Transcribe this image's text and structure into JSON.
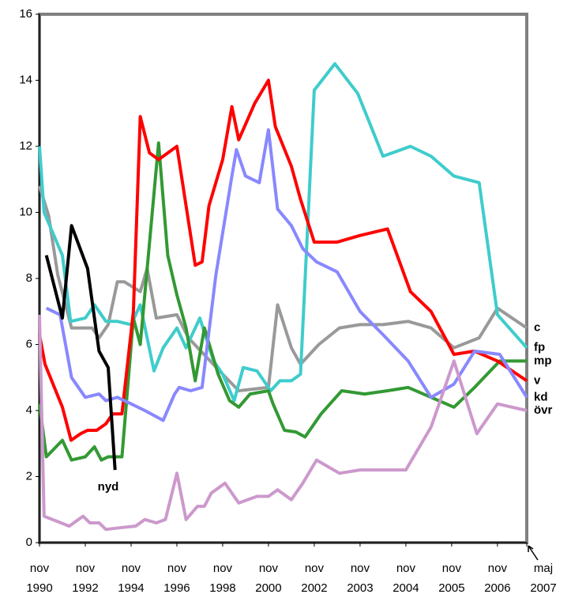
{
  "chart_data": {
    "type": "line",
    "xlim": [
      0,
      10.64
    ],
    "ylim": [
      0,
      16
    ],
    "yticks": [
      0,
      2,
      4,
      6,
      8,
      10,
      12,
      14,
      16
    ],
    "xticks": [
      {
        "value": 0,
        "label": "nov 1990"
      },
      {
        "value": 1,
        "label": "nov 1992"
      },
      {
        "value": 2,
        "label": "nov 1994"
      },
      {
        "value": 3,
        "label": "nov 1996"
      },
      {
        "value": 4,
        "label": "nov 1998"
      },
      {
        "value": 5,
        "label": "nov 2000"
      },
      {
        "value": 6,
        "label": "nov 2002"
      },
      {
        "value": 7,
        "label": "nov 2003"
      },
      {
        "value": 8,
        "label": "nov 2004"
      },
      {
        "value": 9,
        "label": "nov 2005"
      },
      {
        "value": 10,
        "label": "nov 2006"
      },
      {
        "value": 10.64,
        "label": "maj 2007"
      }
    ],
    "grid": false,
    "series": [
      {
        "name": "c",
        "color": "#999999",
        "x": [
          0,
          0.2,
          0.4,
          0.7,
          1.15,
          1.3,
          1.5,
          1.7,
          1.85,
          2.2,
          2.35,
          2.55,
          3.0,
          3.25,
          4.0,
          4.35,
          5.0,
          5.2,
          5.5,
          5.7,
          6.1,
          6.55,
          7.0,
          7.5,
          8.05,
          8.55,
          9.05,
          9.6,
          10.0,
          10.64
        ],
        "values": [
          10.8,
          9.9,
          8.1,
          6.5,
          6.5,
          6.2,
          6.6,
          7.9,
          7.9,
          7.6,
          8.3,
          6.8,
          6.9,
          6.2,
          5.1,
          4.6,
          4.7,
          7.2,
          5.9,
          5.4,
          6.0,
          6.5,
          6.6,
          6.6,
          6.7,
          6.5,
          5.9,
          6.2,
          7.1,
          6.5
        ]
      },
      {
        "name": "fp",
        "color": "#3fcccc",
        "x": [
          0,
          0.1,
          0.5,
          0.68,
          1.0,
          1.2,
          1.45,
          1.7,
          2.0,
          2.2,
          2.5,
          2.7,
          3.0,
          3.2,
          3.5,
          3.8,
          4.0,
          4.25,
          4.45,
          4.75,
          5.05,
          5.25,
          5.5,
          5.7,
          6.0,
          6.45,
          6.95,
          7.5,
          8.1,
          8.55,
          9.05,
          9.6,
          10.0,
          10.64
        ],
        "values": [
          12.0,
          10.0,
          8.7,
          6.7,
          6.8,
          7.2,
          6.7,
          6.7,
          6.6,
          7.2,
          5.2,
          5.9,
          6.5,
          5.9,
          6.8,
          5.5,
          5.1,
          4.3,
          5.3,
          5.2,
          4.6,
          4.9,
          4.9,
          5.1,
          13.7,
          14.5,
          13.6,
          11.7,
          12.0,
          11.7,
          11.1,
          10.9,
          6.9,
          5.9
        ]
      },
      {
        "name": "mp",
        "color": "#339933",
        "x": [
          0,
          0.15,
          0.5,
          0.7,
          1.0,
          1.2,
          1.35,
          1.5,
          1.65,
          1.8,
          2.05,
          2.2,
          2.6,
          2.8,
          3.0,
          3.2,
          3.4,
          3.6,
          3.9,
          4.15,
          4.35,
          4.6,
          5.0,
          5.1,
          5.35,
          5.6,
          5.8,
          6.15,
          6.6,
          7.1,
          7.6,
          8.05,
          8.55,
          9.05,
          9.5,
          10.05,
          10.64
        ],
        "values": [
          4.2,
          2.6,
          3.1,
          2.5,
          2.6,
          2.9,
          2.5,
          2.6,
          2.6,
          2.6,
          6.8,
          6.0,
          12.1,
          8.7,
          7.5,
          6.5,
          4.9,
          6.5,
          5.1,
          4.3,
          4.1,
          4.5,
          4.6,
          4.2,
          3.4,
          3.35,
          3.2,
          3.9,
          4.6,
          4.5,
          4.6,
          4.7,
          4.4,
          4.1,
          4.7,
          5.5,
          5.5
        ]
      },
      {
        "name": "v",
        "color": "#ff0000",
        "x": [
          0,
          0.12,
          0.5,
          0.69,
          0.9,
          1.05,
          1.25,
          1.45,
          1.6,
          1.8,
          2.05,
          2.2,
          2.4,
          2.6,
          3.0,
          3.4,
          3.55,
          3.7,
          4.0,
          4.2,
          4.35,
          4.7,
          5.0,
          5.15,
          5.5,
          5.7,
          6.0,
          6.5,
          7.0,
          7.6,
          8.1,
          8.55,
          9.05,
          9.5,
          10.0,
          10.64
        ],
        "values": [
          6.3,
          5.4,
          4.1,
          3.1,
          3.3,
          3.4,
          3.4,
          3.6,
          3.9,
          3.9,
          7.0,
          12.9,
          11.8,
          11.6,
          12.0,
          8.4,
          8.5,
          10.2,
          11.6,
          13.2,
          12.2,
          13.3,
          14.0,
          12.6,
          11.4,
          10.4,
          9.1,
          9.1,
          9.3,
          9.5,
          7.6,
          7.0,
          5.7,
          5.8,
          5.5,
          4.9
        ]
      },
      {
        "name": "kd",
        "color": "#8888ff",
        "x": [
          0.15,
          0.45,
          0.7,
          1.0,
          1.3,
          1.45,
          1.7,
          2.0,
          2.3,
          2.7,
          2.95,
          3.05,
          3.3,
          3.55,
          3.85,
          4.2,
          4.3,
          4.5,
          4.8,
          5.0,
          5.2,
          5.5,
          5.75,
          6.05,
          6.5,
          7.0,
          7.5,
          8.05,
          8.55,
          9.05,
          9.5,
          10.05,
          10.64
        ],
        "values": [
          7.1,
          6.9,
          5.0,
          4.4,
          4.5,
          4.3,
          4.4,
          4.2,
          4.0,
          3.7,
          4.5,
          4.7,
          4.6,
          4.7,
          8.1,
          11.1,
          11.9,
          11.1,
          10.9,
          12.5,
          10.1,
          9.6,
          8.9,
          8.5,
          8.2,
          7.0,
          6.3,
          5.5,
          4.4,
          4.8,
          5.8,
          5.7,
          4.4
        ]
      },
      {
        "name": "övr",
        "color": "#cc99cc",
        "x": [
          0,
          0.1,
          0.65,
          0.95,
          1.1,
          1.3,
          1.45,
          1.75,
          2.1,
          2.3,
          2.55,
          2.75,
          3.0,
          3.2,
          3.45,
          3.6,
          3.75,
          4.05,
          4.35,
          4.75,
          5.0,
          5.2,
          5.5,
          5.75,
          6.05,
          6.55,
          7.0,
          7.5,
          8.0,
          8.55,
          9.05,
          9.55,
          10.0,
          10.64
        ],
        "values": [
          6.9,
          0.8,
          0.5,
          0.8,
          0.6,
          0.6,
          0.4,
          0.45,
          0.5,
          0.7,
          0.6,
          0.7,
          2.1,
          0.7,
          1.1,
          1.1,
          1.5,
          1.8,
          1.2,
          1.4,
          1.4,
          1.6,
          1.3,
          1.8,
          2.5,
          2.1,
          2.2,
          2.2,
          2.2,
          3.5,
          5.5,
          3.3,
          4.2,
          4.0
        ]
      },
      {
        "name": "nyd",
        "color": "#000000",
        "x": [
          0.15,
          0.5,
          0.7,
          1.05,
          1.3,
          1.5,
          1.65
        ],
        "values": [
          8.7,
          6.8,
          9.6,
          8.3,
          5.8,
          5.3,
          2.2
        ]
      }
    ]
  }
}
